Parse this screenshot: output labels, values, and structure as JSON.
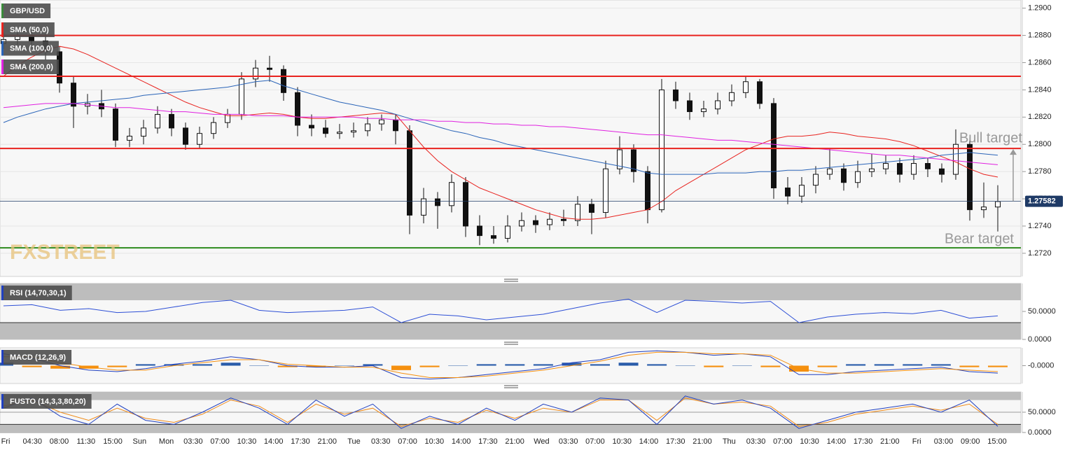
{
  "chart_data": [
    {
      "type": "candlestick",
      "symbol": "GBP/USD",
      "watermark": "FXSTREET",
      "open": [
        1.2874,
        1.2877,
        1.288,
        1.2876,
        1.2868,
        1.2845,
        1.2828,
        1.283,
        1.2826,
        1.2803,
        1.2806,
        1.2812,
        1.2822,
        1.2812,
        1.28,
        1.2808,
        1.2816,
        1.2822,
        1.2848,
        1.2856,
        1.2855,
        1.2838,
        1.2814,
        1.2812,
        1.2808,
        1.2809,
        1.281,
        1.2815,
        1.2818,
        1.281,
        1.2748,
        1.276,
        1.2755,
        1.2772,
        1.274,
        1.2733,
        1.2731,
        1.274,
        1.2744,
        1.2741,
        1.2745,
        1.2744,
        1.2756,
        1.275,
        1.2782,
        1.2796,
        1.278,
        1.2752,
        1.284,
        1.2832,
        1.2824,
        1.2826,
        1.2832,
        1.2838,
        1.2846,
        1.283,
        1.2768,
        1.2762,
        1.277,
        1.2778,
        1.2782,
        1.2772,
        1.278,
        1.2782,
        1.2786,
        1.2778,
        1.2786,
        1.2782,
        1.2778,
        1.28,
        1.2752,
        1.2754
      ],
      "high": [
        1.2882,
        1.2884,
        1.2884,
        1.2881,
        1.2872,
        1.285,
        1.2837,
        1.284,
        1.283,
        1.2812,
        1.2818,
        1.2828,
        1.2826,
        1.2816,
        1.2813,
        1.282,
        1.2826,
        1.2853,
        1.2862,
        1.2865,
        1.2858,
        1.2842,
        1.2822,
        1.2818,
        1.2815,
        1.2816,
        1.282,
        1.2822,
        1.2822,
        1.2814,
        1.2768,
        1.2765,
        1.2778,
        1.2776,
        1.2748,
        1.274,
        1.2748,
        1.275,
        1.2748,
        1.275,
        1.2752,
        1.2762,
        1.276,
        1.2788,
        1.2806,
        1.28,
        1.2784,
        1.2848,
        1.2846,
        1.2838,
        1.2832,
        1.2838,
        1.2844,
        1.285,
        1.2848,
        1.2834,
        1.2776,
        1.2776,
        1.2784,
        1.2797,
        1.2786,
        1.2788,
        1.2793,
        1.2792,
        1.279,
        1.2792,
        1.279,
        1.2786,
        1.2811,
        1.2805,
        1.2772,
        1.277
      ],
      "low": [
        1.287,
        1.2873,
        1.2871,
        1.2862,
        1.2838,
        1.2812,
        1.2822,
        1.282,
        1.2798,
        1.2798,
        1.28,
        1.2808,
        1.2806,
        1.2796,
        1.2797,
        1.2804,
        1.2812,
        1.2818,
        1.2842,
        1.2846,
        1.2832,
        1.2806,
        1.2806,
        1.2805,
        1.2804,
        1.2805,
        1.2806,
        1.281,
        1.28,
        1.2734,
        1.2742,
        1.2738,
        1.275,
        1.2732,
        1.2726,
        1.2727,
        1.2728,
        1.2736,
        1.2735,
        1.2737,
        1.274,
        1.274,
        1.2734,
        1.2746,
        1.2778,
        1.2772,
        1.2742,
        1.275,
        1.2826,
        1.2818,
        1.282,
        1.2822,
        1.2828,
        1.2834,
        1.2826,
        1.276,
        1.2756,
        1.2757,
        1.2764,
        1.2774,
        1.2766,
        1.2768,
        1.2776,
        1.2778,
        1.2772,
        1.2774,
        1.2776,
        1.2772,
        1.2774,
        1.2744,
        1.2746,
        1.2736
      ],
      "close": [
        1.2877,
        1.288,
        1.2876,
        1.2868,
        1.2845,
        1.2828,
        1.283,
        1.2826,
        1.2803,
        1.2806,
        1.2812,
        1.2822,
        1.2812,
        1.28,
        1.2808,
        1.2816,
        1.2822,
        1.2848,
        1.2856,
        1.2855,
        1.2838,
        1.2814,
        1.2812,
        1.2808,
        1.2809,
        1.281,
        1.2815,
        1.2818,
        1.281,
        1.2748,
        1.276,
        1.2755,
        1.2772,
        1.274,
        1.2733,
        1.2731,
        1.274,
        1.2744,
        1.2741,
        1.2745,
        1.2744,
        1.2756,
        1.275,
        1.2782,
        1.2796,
        1.278,
        1.2752,
        1.284,
        1.2832,
        1.2824,
        1.2826,
        1.2832,
        1.2838,
        1.2846,
        1.283,
        1.2768,
        1.2762,
        1.277,
        1.2778,
        1.2782,
        1.2772,
        1.278,
        1.2782,
        1.2786,
        1.2778,
        1.2786,
        1.2782,
        1.2778,
        1.28,
        1.2752,
        1.2754,
        1.2758
      ],
      "series": [
        {
          "name": "SMA (50,0)",
          "color": "#e8231f",
          "values": [
            1.285,
            1.2858,
            1.2864,
            1.2869,
            1.2872,
            1.287,
            1.2866,
            1.2861,
            1.2856,
            1.2851,
            1.2846,
            1.2841,
            1.2836,
            1.2831,
            1.2827,
            1.2824,
            1.2821,
            1.2821,
            1.2822,
            1.2823,
            1.2822,
            1.282,
            1.2819,
            1.2819,
            1.282,
            1.2821,
            1.2822,
            1.2823,
            1.2822,
            1.281,
            1.2798,
            1.2788,
            1.278,
            1.2774,
            1.2768,
            1.2764,
            1.276,
            1.2756,
            1.2752,
            1.2749,
            1.2746,
            1.2745,
            1.2745,
            1.2746,
            1.2748,
            1.275,
            1.2752,
            1.2758,
            1.2766,
            1.2772,
            1.2778,
            1.2784,
            1.279,
            1.2796,
            1.28,
            1.2804,
            1.2806,
            1.2806,
            1.2807,
            1.2809,
            1.2808,
            1.2806,
            1.2805,
            1.2804,
            1.2802,
            1.2799,
            1.2795,
            1.2791,
            1.2787,
            1.2782,
            1.2778,
            1.2776
          ]
        },
        {
          "name": "SMA (100,0)",
          "color": "#2a64b8",
          "values": [
            1.2816,
            1.282,
            1.2823,
            1.2826,
            1.2828,
            1.283,
            1.2831,
            1.2832,
            1.2833,
            1.2834,
            1.2836,
            1.2837,
            1.2838,
            1.2839,
            1.284,
            1.2841,
            1.2842,
            1.2844,
            1.2846,
            1.2847,
            1.2843,
            1.284,
            1.2837,
            1.2834,
            1.2831,
            1.2829,
            1.2827,
            1.2825,
            1.2822,
            1.2819,
            1.2816,
            1.2813,
            1.281,
            1.2808,
            1.2805,
            1.2803,
            1.28,
            1.2798,
            1.2796,
            1.2794,
            1.2792,
            1.279,
            1.2788,
            1.2786,
            1.2784,
            1.2782,
            1.2779,
            1.2778,
            1.2778,
            1.2778,
            1.2778,
            1.2779,
            1.2779,
            1.2779,
            1.278,
            1.278,
            1.2781,
            1.2781,
            1.2782,
            1.2783,
            1.2784,
            1.2785,
            1.2786,
            1.2787,
            1.2788,
            1.2789,
            1.279,
            1.2792,
            1.2793,
            1.2794,
            1.2793,
            1.2792
          ]
        },
        {
          "name": "SMA (200,0)",
          "color": "#e020e0",
          "values": [
            1.2827,
            1.2828,
            1.2829,
            1.283,
            1.283,
            1.283,
            1.2829,
            1.2828,
            1.2827,
            1.2827,
            1.2826,
            1.2825,
            1.2824,
            1.2824,
            1.2823,
            1.2822,
            1.2822,
            1.2822,
            1.2821,
            1.2821,
            1.2821,
            1.282,
            1.282,
            1.282,
            1.282,
            1.282,
            1.2819,
            1.2819,
            1.2818,
            1.2818,
            1.2818,
            1.2817,
            1.2817,
            1.2816,
            1.2816,
            1.2815,
            1.2815,
            1.2814,
            1.2814,
            1.2813,
            1.2813,
            1.2812,
            1.2811,
            1.281,
            1.2809,
            1.2808,
            1.2807,
            1.2807,
            1.2806,
            1.2805,
            1.2804,
            1.2803,
            1.2803,
            1.2802,
            1.2801,
            1.28,
            1.2799,
            1.2798,
            1.2797,
            1.2796,
            1.2795,
            1.2794,
            1.2793,
            1.2792,
            1.2792,
            1.2791,
            1.279,
            1.2789,
            1.2788,
            1.2787,
            1.2786,
            1.2785
          ]
        }
      ],
      "ylim": [
        1.2703,
        1.2906
      ],
      "yticks": [
        {
          "value": 1.272,
          "label": "1.2720"
        },
        {
          "value": 1.274,
          "label": "1.2740"
        },
        {
          "value": 1.276,
          "label": "1.2760"
        },
        {
          "value": 1.278,
          "label": "1.2780"
        },
        {
          "value": 1.28,
          "label": "1.2800"
        },
        {
          "value": 1.282,
          "label": "1.2820"
        },
        {
          "value": 1.284,
          "label": "1.2840"
        },
        {
          "value": 1.286,
          "label": "1.2860"
        },
        {
          "value": 1.288,
          "label": "1.2880"
        },
        {
          "value": 1.29,
          "label": "1.2900"
        }
      ],
      "grid": true,
      "levels": [
        {
          "value": 1.288,
          "color": "#e8231f"
        },
        {
          "value": 1.285,
          "color": "#e8231f"
        },
        {
          "value": 1.2797,
          "color": "#e8231f"
        },
        {
          "value": 1.2724,
          "color": "#2e8b1e"
        }
      ],
      "last_price": 1.27582,
      "annotations": [
        "Bull target",
        "Bear target"
      ],
      "xticks": [
        "Fri",
        "04:30",
        "08:00",
        "11:30",
        "15:00",
        "Sun",
        "Mon",
        "03:30",
        "07:00",
        "10:30",
        "14:00",
        "17:30",
        "21:00",
        "Tue",
        "03:30",
        "07:00",
        "10:30",
        "14:00",
        "17:30",
        "21:00",
        "Wed",
        "03:30",
        "07:00",
        "10:30",
        "14:00",
        "17:30",
        "21:00",
        "Thu",
        "03:30",
        "07:00",
        "10:30",
        "14:00",
        "17:30",
        "21:00",
        "Fri",
        "03:00",
        "09:00",
        "15:00"
      ]
    },
    {
      "type": "line",
      "title": "RSI (14,70,30,1)",
      "ylim": [
        0,
        100
      ],
      "yticks": [
        {
          "value": 0,
          "label": "0.0000"
        },
        {
          "value": 50,
          "label": "50.0000"
        }
      ],
      "overbought": 70,
      "oversold": 30,
      "series": [
        {
          "color": "#2d4fd6",
          "values": [
            60,
            62,
            52,
            55,
            48,
            50,
            58,
            66,
            70,
            52,
            48,
            50,
            52,
            58,
            30,
            45,
            42,
            35,
            40,
            45,
            55,
            65,
            72,
            48,
            70,
            68,
            65,
            68,
            30,
            40,
            45,
            48,
            46,
            52,
            38,
            42
          ]
        }
      ]
    },
    {
      "type": "line",
      "title": "MACD (12,26,9)",
      "ylim": [
        -0.0012,
        0.0012
      ],
      "yticks": [
        {
          "value": 0,
          "label": "-0.0000"
        }
      ],
      "series": [
        {
          "style": "histogram",
          "color": "#2a5caa",
          "negative_color": "#f5900f",
          "values": [
            0.0002,
            -0.0001,
            -0.0002,
            -0.0002,
            -0.0001,
            0.0001,
            0.0001,
            0.0001,
            0.0002,
            0.0,
            -0.0001,
            -0.0001,
            0.0,
            0.0001,
            -0.0003,
            -0.0001,
            0.0,
            0.0001,
            0.0001,
            0.0001,
            0.0002,
            0.0001,
            0.0002,
            0.0001,
            0.0,
            -0.0001,
            0.0,
            -0.0001,
            -0.0004,
            -0.0001,
            0.0001,
            0.0001,
            0.0001,
            0.0001,
            -0.0001,
            -0.0001
          ]
        },
        {
          "color": "#2040c0",
          "values": [
            0.0008,
            0.0005,
            0.0,
            -0.0003,
            -0.0004,
            -0.0002,
            0.0001,
            0.0003,
            0.0006,
            0.0004,
            0.0,
            -0.0001,
            -0.0001,
            0.0,
            -0.0008,
            -0.0009,
            -0.0008,
            -0.0006,
            -0.0004,
            -0.0002,
            0.0002,
            0.0004,
            0.0009,
            0.001,
            0.0009,
            0.0007,
            0.0008,
            0.0006,
            -0.0006,
            -0.0006,
            -0.0004,
            -0.0003,
            -0.0002,
            -0.0001,
            -0.0004,
            -0.0005
          ]
        },
        {
          "color": "#f5900f",
          "values": [
            0.0006,
            0.0006,
            0.0002,
            -0.0001,
            -0.0003,
            -0.0003,
            0.0,
            0.0002,
            0.0004,
            0.0004,
            0.0001,
            0.0,
            -0.0001,
            -0.0001,
            -0.0005,
            -0.0008,
            -0.0008,
            -0.0007,
            -0.0005,
            -0.0003,
            0.0,
            0.0003,
            0.0007,
            0.0009,
            0.0009,
            0.0008,
            0.0008,
            0.0007,
            -0.0002,
            -0.0005,
            -0.0005,
            -0.0004,
            -0.0003,
            -0.0002,
            -0.0003,
            -0.0004
          ]
        }
      ]
    },
    {
      "type": "line",
      "title": "FUSTO (14,3,3,80,20)",
      "ylim": [
        0,
        100
      ],
      "yticks": [
        {
          "value": 0,
          "label": "0.0000"
        },
        {
          "value": 50,
          "label": "50.0000"
        }
      ],
      "overbought": 80,
      "oversold": 20,
      "grid": true,
      "series": [
        {
          "color": "#f08c1a",
          "values": [
            65,
            80,
            50,
            30,
            60,
            35,
            25,
            45,
            80,
            65,
            25,
            70,
            45,
            60,
            15,
            35,
            25,
            55,
            35,
            60,
            50,
            80,
            80,
            30,
            85,
            70,
            75,
            65,
            15,
            25,
            45,
            55,
            65,
            55,
            70,
            20
          ]
        },
        {
          "color": "#2040c0",
          "values": [
            60,
            85,
            40,
            20,
            70,
            30,
            20,
            50,
            85,
            60,
            20,
            80,
            40,
            70,
            10,
            40,
            20,
            60,
            30,
            70,
            50,
            85,
            80,
            20,
            90,
            70,
            80,
            60,
            10,
            30,
            50,
            60,
            70,
            50,
            80,
            15
          ]
        }
      ]
    }
  ]
}
